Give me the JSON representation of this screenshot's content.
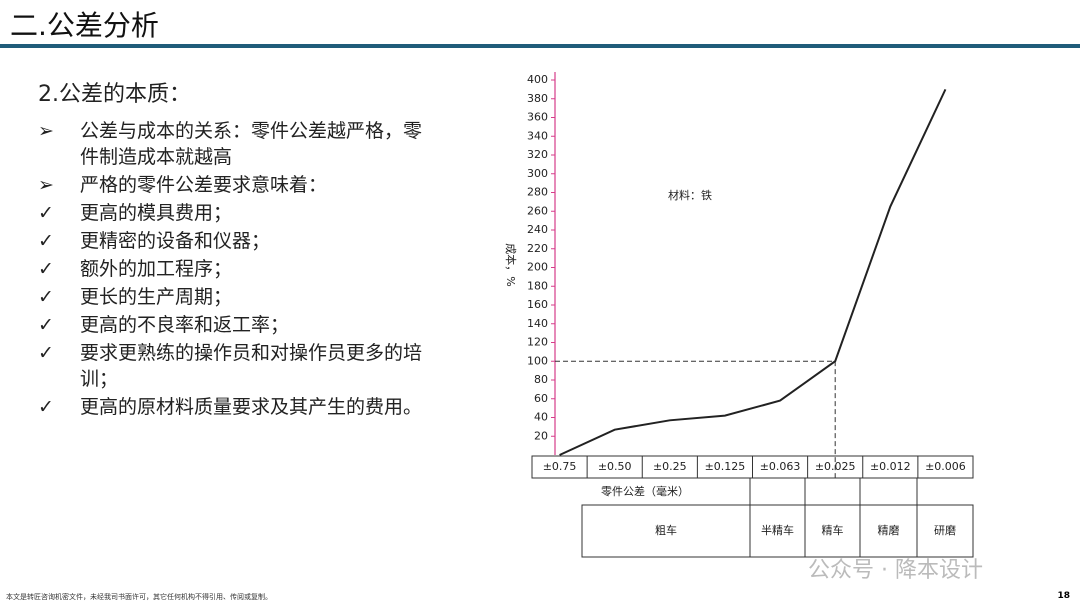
{
  "header": {
    "title": "二.公差分析"
  },
  "section": {
    "title": "2.公差的本质：",
    "items": [
      {
        "marker": "➢",
        "text": "公差与成本的关系：零件公差越严格，零件制造成本就越高"
      },
      {
        "marker": "➢",
        "text": "严格的零件公差要求意味着："
      },
      {
        "marker": "✓",
        "text": "更高的模具费用；"
      },
      {
        "marker": "✓",
        "text": "更精密的设备和仪器；"
      },
      {
        "marker": "✓",
        "text": "额外的加工程序；"
      },
      {
        "marker": "✓",
        "text": "更长的生产周期；"
      },
      {
        "marker": "✓",
        "text": "更高的不良率和返工率；"
      },
      {
        "marker": "✓",
        "text": "要求更熟练的操作员和对操作员更多的培训；"
      },
      {
        "marker": "✓",
        "text": "更高的原材料质量要求及其产生的费用。"
      }
    ]
  },
  "chart_data": {
    "type": "line",
    "y_label": "成本，%",
    "x_label": "零件公差（毫米）",
    "annotation": "材料：铁",
    "categories": [
      "±0.75",
      "±0.50",
      "±0.25",
      "±0.125",
      "±0.063",
      "±0.025",
      "±0.012",
      "±0.006"
    ],
    "values": [
      0,
      27,
      37,
      42,
      58,
      100,
      265,
      390
    ],
    "color": "#222222",
    "ylim": [
      0,
      400
    ],
    "yticks": [
      20,
      40,
      60,
      80,
      100,
      120,
      140,
      160,
      180,
      200,
      220,
      240,
      260,
      280,
      300,
      320,
      340,
      360,
      380,
      400
    ],
    "processes": [
      "粗车",
      "半精车",
      "精车",
      "精磨",
      "研磨"
    ]
  },
  "footer": {
    "note": "本文是转匠咨询机密文件，未经我司书面许可，其它任何机构不得引用、传阅或复制。",
    "page": "18",
    "watermark": "公众号 · 降本设计"
  }
}
